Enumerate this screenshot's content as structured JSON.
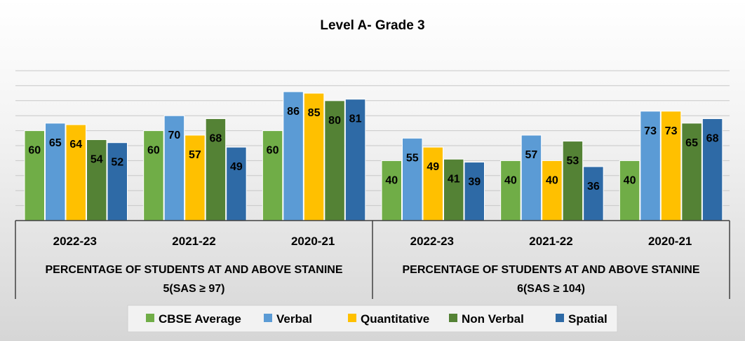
{
  "chart_data": {
    "type": "bar",
    "title": "Level A- Grade 3",
    "categories": [
      "2022-23",
      "2021-22",
      "2020-21",
      "2022-23",
      "2021-22",
      "2020-21"
    ],
    "groups": [
      {
        "label": "PERCENTAGE OF STUDENTS AT AND ABOVE STANINE 5(SAS ≥ 97)",
        "span": [
          0,
          2
        ]
      },
      {
        "label": "PERCENTAGE OF STUDENTS AT AND ABOVE STANINE 6(SAS ≥ 104)",
        "span": [
          3,
          5
        ]
      }
    ],
    "series": [
      {
        "name": "CBSE Average",
        "color": "#70ad47",
        "values": [
          60,
          60,
          60,
          40,
          40,
          40
        ]
      },
      {
        "name": "Verbal",
        "color": "#5b9bd5",
        "values": [
          65,
          70,
          86,
          55,
          57,
          73
        ]
      },
      {
        "name": "Quantitative",
        "color": "#ffc000",
        "values": [
          64,
          57,
          85,
          49,
          40,
          73
        ]
      },
      {
        "name": "Non Verbal",
        "color": "#548235",
        "values": [
          54,
          68,
          80,
          41,
          53,
          65
        ]
      },
      {
        "name": "Spatial",
        "color": "#2e6aa6",
        "values": [
          52,
          49,
          81,
          39,
          36,
          68
        ]
      }
    ],
    "ylim": [
      0,
      100
    ],
    "grid": true,
    "legend_position": "bottom"
  }
}
